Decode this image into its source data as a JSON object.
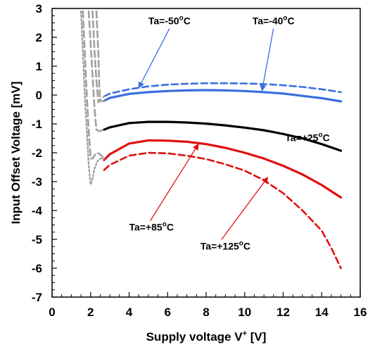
{
  "chart_data": {
    "type": "line",
    "title": "",
    "xlabel": "Supply voltage V",
    "xlabel_sup": "+",
    "xlabel_unit": " [V]",
    "ylabel": "Input Offset Voltage [mV]",
    "xlim": [
      0,
      16
    ],
    "ylim": [
      -7,
      3
    ],
    "x_ticks": [
      0,
      2,
      4,
      6,
      8,
      10,
      12,
      14,
      16
    ],
    "y_ticks": [
      3,
      2,
      1,
      0,
      -1,
      -2,
      -3,
      -4,
      -5,
      -6,
      -7
    ],
    "grid": false,
    "legend": "none",
    "colors": {
      "blue": "#3a6fe0",
      "black": "#000000",
      "red": "#e01010",
      "gray": "#a0a0a0"
    },
    "series": [
      {
        "name": "Ta=-50°C",
        "color": "blue",
        "style": "dashed",
        "x": [
          2.7,
          3,
          4,
          5,
          6,
          7,
          8,
          9,
          10,
          11,
          12,
          13,
          14,
          15
        ],
        "y": [
          -0.05,
          0.05,
          0.2,
          0.3,
          0.36,
          0.39,
          0.41,
          0.41,
          0.4,
          0.38,
          0.34,
          0.28,
          0.2,
          0.1
        ]
      },
      {
        "name": "Ta=-40°C",
        "color": "blue",
        "style": "solid",
        "x": [
          2.7,
          3,
          4,
          5,
          6,
          7,
          8,
          9,
          10,
          11,
          12,
          13,
          14,
          15
        ],
        "y": [
          -0.2,
          -0.1,
          0.04,
          0.1,
          0.14,
          0.16,
          0.17,
          0.16,
          0.14,
          0.1,
          0.05,
          -0.03,
          -0.11,
          -0.22
        ]
      },
      {
        "name": "Ta=+25°C",
        "color": "black",
        "style": "solid",
        "x": [
          2.7,
          3,
          4,
          5,
          6,
          7,
          8,
          9,
          10,
          11,
          12,
          13,
          14,
          15
        ],
        "y": [
          -1.2,
          -1.12,
          -0.97,
          -0.93,
          -0.93,
          -0.95,
          -0.99,
          -1.05,
          -1.13,
          -1.22,
          -1.35,
          -1.5,
          -1.7,
          -1.93
        ]
      },
      {
        "name": "Ta=+85°C",
        "color": "red",
        "style": "solid",
        "x": [
          2.7,
          3,
          4,
          5,
          6,
          7,
          8,
          9,
          10,
          11,
          12,
          13,
          14,
          15
        ],
        "y": [
          -2.25,
          -2.05,
          -1.68,
          -1.57,
          -1.58,
          -1.62,
          -1.7,
          -1.83,
          -2.0,
          -2.2,
          -2.45,
          -2.75,
          -3.12,
          -3.55
        ]
      },
      {
        "name": "Ta=+125°C",
        "color": "red",
        "style": "dashed",
        "x": [
          2.7,
          3,
          4,
          5,
          6,
          7,
          8,
          9,
          10,
          11,
          12,
          13,
          14,
          14.5,
          15
        ],
        "y": [
          -2.6,
          -2.42,
          -2.1,
          -2.0,
          -2.02,
          -2.1,
          -2.22,
          -2.4,
          -2.62,
          -2.95,
          -3.4,
          -4.0,
          -4.7,
          -5.3,
          -6.0
        ]
      },
      {
        "name": "",
        "color": "gray",
        "style": "dotted",
        "x": [
          1.5,
          1.6,
          1.7,
          1.8,
          1.9,
          2.0,
          2.1,
          2.2,
          2.35,
          2.5,
          2.7
        ],
        "y": [
          2.9,
          1.5,
          0.0,
          -1.2,
          -2.4,
          -3.1,
          -2.9,
          -2.55,
          -2.3,
          -2.2,
          -2.2
        ]
      },
      {
        "name": "",
        "color": "gray",
        "style": "dashed",
        "x": [
          1.6,
          1.7,
          1.8,
          1.9,
          2.0,
          2.1,
          2.2,
          2.3,
          2.5,
          2.7
        ],
        "y": [
          2.9,
          1.5,
          0.0,
          -1.2,
          -2.2,
          -2.2,
          -2.1,
          -2.0,
          -2.05,
          -2.2
        ]
      },
      {
        "name": "",
        "color": "gray",
        "style": "dashed",
        "x": [
          1.9,
          2.0,
          2.1,
          2.2,
          2.3,
          2.45,
          2.6,
          2.7
        ],
        "y": [
          2.9,
          1.8,
          0.7,
          -0.4,
          -1.2,
          -1.25,
          -1.22,
          -1.2
        ]
      },
      {
        "name": "",
        "color": "gray",
        "style": "dashed",
        "x": [
          2.1,
          2.2,
          2.3,
          2.4,
          2.5,
          2.6,
          2.7
        ],
        "y": [
          2.9,
          1.6,
          0.5,
          -0.25,
          -0.15,
          -0.1,
          -0.05
        ]
      },
      {
        "name": "",
        "color": "gray",
        "style": "dashed",
        "x": [
          2.3,
          2.4,
          2.45,
          2.5,
          2.6,
          2.7
        ],
        "y": [
          2.9,
          1.5,
          0.3,
          -0.2,
          -0.22,
          -0.2
        ]
      }
    ],
    "annotations": [
      {
        "id": "m50",
        "text": "Ta=-50",
        "sup": "o",
        "unit": "C",
        "color": "blue",
        "label_at": [
          5.0,
          2.45
        ],
        "arrow_to": [
          4.5,
          0.25
        ]
      },
      {
        "id": "m40",
        "text": "Ta=-40",
        "sup": "o",
        "unit": "C",
        "color": "blue",
        "label_at": [
          10.4,
          2.45
        ],
        "arrow_to": [
          10.9,
          0.15
        ]
      },
      {
        "id": "p25",
        "text": "Ta=+25",
        "sup": "o",
        "unit": "C",
        "color": "black",
        "label_at": [
          12.1,
          -1.6
        ],
        "arrow_to": null
      },
      {
        "id": "p85",
        "text": "Ta=+85",
        "sup": "o",
        "unit": "C",
        "color": "red",
        "label_at": [
          4.0,
          -4.7
        ],
        "arrow_to": [
          7.6,
          -1.7
        ]
      },
      {
        "id": "p125",
        "text": "Ta=+125",
        "sup": "o",
        "unit": "C",
        "color": "red",
        "label_at": [
          7.7,
          -5.35
        ],
        "arrow_to": [
          11.2,
          -2.85
        ]
      }
    ]
  }
}
